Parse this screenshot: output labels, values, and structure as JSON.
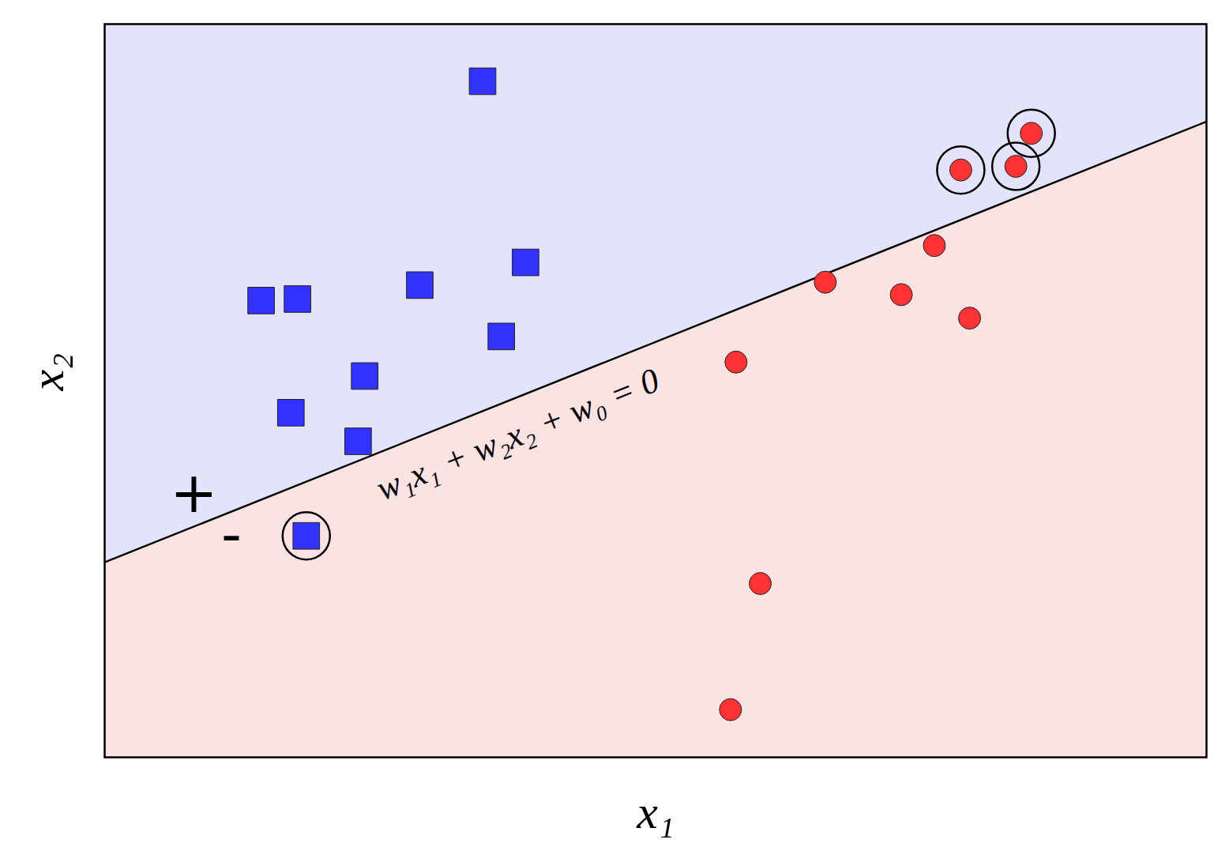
{
  "chart_data": {
    "type": "scatter",
    "x_label": "x₁",
    "y_label": "x₂",
    "xlim": [
      0,
      10
    ],
    "ylim": [
      0,
      10
    ],
    "tick_labels": false,
    "grid": false,
    "series": [
      {
        "color": "#3333ff",
        "marker": "square",
        "x": [
          3.43,
          1.42,
          1.75,
          2.86,
          3.82,
          3.6,
          2.36,
          1.69,
          2.3,
          1.83
        ],
        "values": [
          9.22,
          6.23,
          6.25,
          6.44,
          6.75,
          5.74,
          5.2,
          4.7,
          4.31,
          3.02
        ],
        "circled": [
          false,
          false,
          false,
          false,
          false,
          false,
          false,
          false,
          false,
          true
        ]
      },
      {
        "color": "#ff3333",
        "marker": "circle",
        "x": [
          8.41,
          7.77,
          8.27,
          7.53,
          6.54,
          7.23,
          7.85,
          5.73,
          5.95,
          5.68
        ],
        "values": [
          8.51,
          8.01,
          8.06,
          6.98,
          6.48,
          6.31,
          5.99,
          5.39,
          2.37,
          0.65
        ],
        "circled": [
          true,
          true,
          true,
          false,
          false,
          false,
          false,
          false,
          false,
          false
        ]
      }
    ],
    "boundary": {
      "x": [
        0,
        10
      ],
      "values": [
        2.66,
        8.67
      ],
      "label": "w₁x₁ + w₂x₂ + w₀ = 0",
      "label_x": 3.75,
      "label_y": 4.4
    },
    "regions": {
      "above_color": "#e3e3fc",
      "below_color": "#fce3e3"
    },
    "annotations": [
      {
        "text": "+",
        "x": 0.81,
        "y": 3.59
      },
      {
        "text": "-",
        "x": 1.15,
        "y": 3.02
      }
    ]
  }
}
